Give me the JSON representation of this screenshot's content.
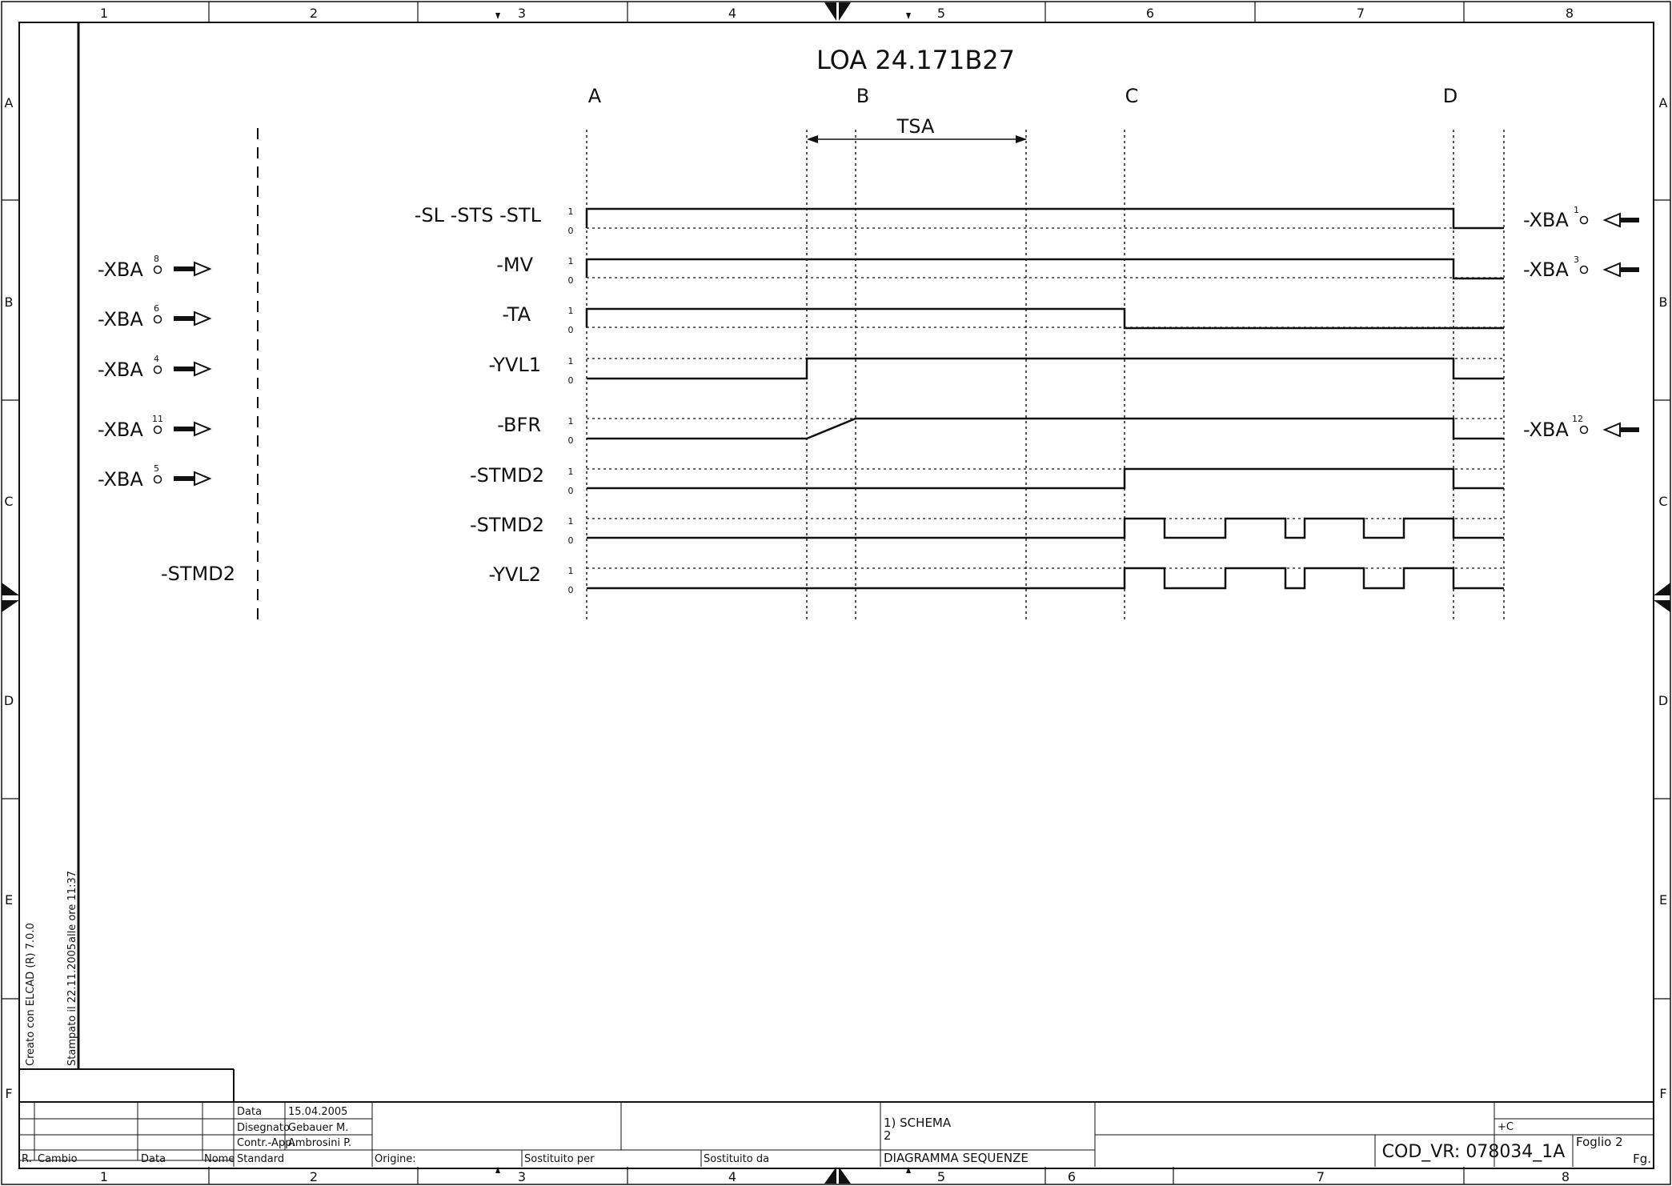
{
  "title": "LOA 24.171B27",
  "phases": [
    "A",
    "B",
    "C",
    "D"
  ],
  "tsa_label": "TSA",
  "column_numbers_top": [
    "1",
    "2",
    "3",
    "4",
    "5",
    "6",
    "7",
    "8"
  ],
  "column_numbers_bottom": [
    "1",
    "2",
    "3",
    "4",
    "5",
    "6",
    "7",
    "8"
  ],
  "row_letters": [
    "A",
    "B",
    "C",
    "D",
    "E",
    "F"
  ],
  "binary_hi": "1",
  "binary_lo": "0",
  "signals": [
    {
      "label": "-SL -STS -STL",
      "left": null,
      "right": "-XBA",
      "right_pin": "1"
    },
    {
      "label": "-MV",
      "left": "-XBA",
      "left_pin": "8",
      "right": "-XBA",
      "right_pin": "3"
    },
    {
      "label": "-TA",
      "left": "-XBA",
      "left_pin": "6",
      "right": null
    },
    {
      "label": "-YVL1",
      "left": "-XBA",
      "left_pin": "4",
      "right": null
    },
    {
      "label": "-BFR",
      "left": "-XBA",
      "left_pin": "11",
      "right": "-XBA",
      "right_pin": "12"
    },
    {
      "label": "-STMD2",
      "left": "-XBA",
      "left_pin": "5",
      "right": null
    },
    {
      "label": "-STMD2",
      "left": null,
      "right": null
    },
    {
      "label": "-YVL2",
      "left": null,
      "right": null
    }
  ],
  "left_side_label": "-STMD2",
  "side_text": {
    "created": "Creato con ELCAD (R) 7.0.0",
    "printed": "Stampato il 22.11.2005",
    "time": "alle ore   11:37"
  },
  "title_block": {
    "data_label": "Data",
    "data_value": "15.04.2005",
    "drawn_label": "Disegnato",
    "drawn_value": "Gebauer M.",
    "checked_label": "Contr.-App.",
    "checked_value": "Ambrosini P.",
    "standard_label": "Standard",
    "rev_label": "R.",
    "change_label": "Cambio",
    "date_col_label": "Data",
    "name_col_label": "Nome",
    "origin_label": "Origine:",
    "replaced_for_label": "Sostituito per",
    "replaced_by_label": "Sostituito da",
    "schema_line1": "1) SCHEMA",
    "schema_line2": "2",
    "description": "DIAGRAMMA SEQUENZE",
    "location": "+C",
    "code": "COD_VR: 078034_1A",
    "sheet": "Foglio 2",
    "sheet_abbr": "Fg."
  },
  "colors": {
    "ink": "#111111",
    "paper": "#ffffff"
  }
}
